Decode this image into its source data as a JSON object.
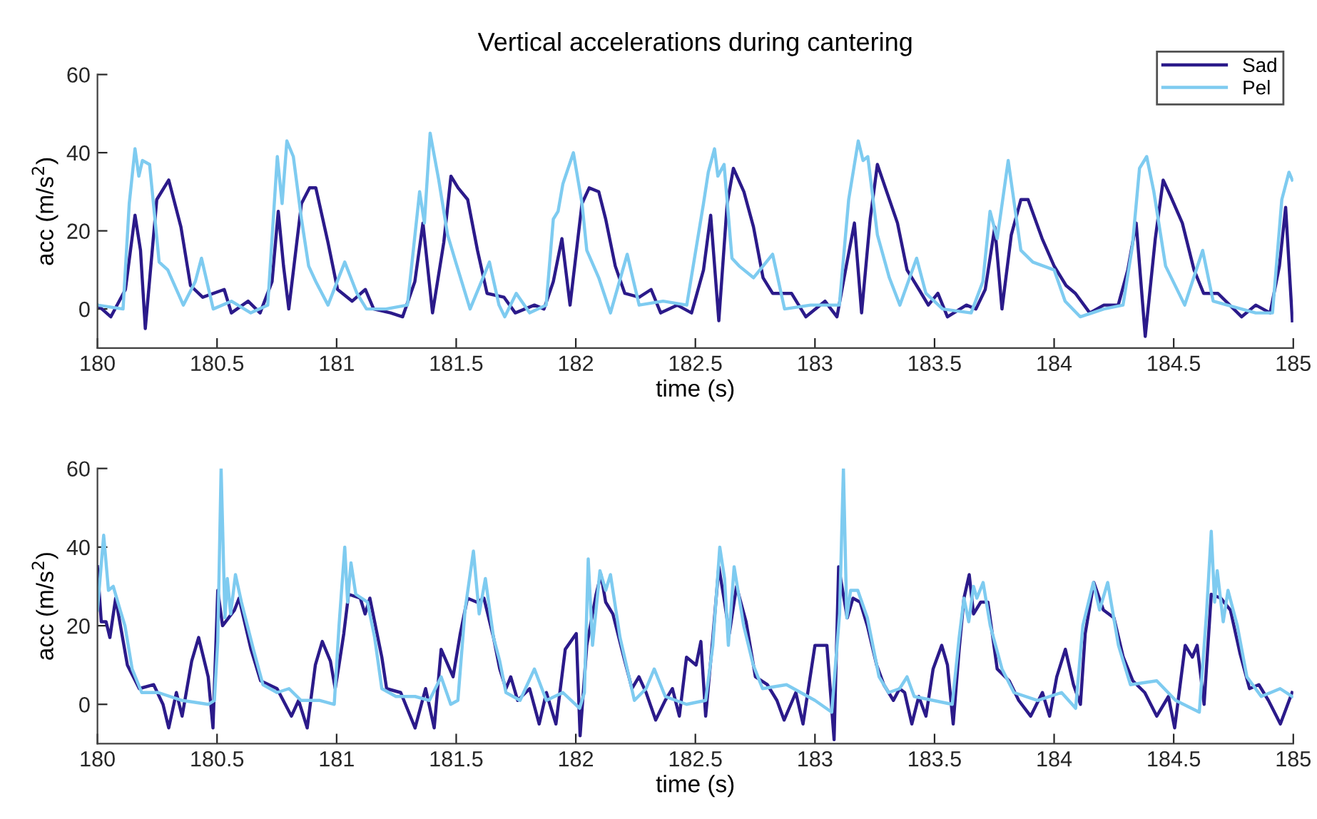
{
  "chart_data": [
    {
      "type": "line",
      "title": "Vertical accelerations during cantering",
      "xlabel": "time (s)",
      "ylabel": "acc (m/s$^{2}$)",
      "xlim": [
        180,
        185
      ],
      "ylim": [
        -10,
        60
      ],
      "xticks": [
        180,
        180.5,
        181,
        181.5,
        182,
        182.5,
        183,
        183.5,
        184,
        184.5,
        185
      ],
      "yticks": [
        0,
        20,
        40,
        60
      ],
      "grid": false,
      "legend": "top right",
      "line_style": "solid",
      "marker": "none",
      "series": [
        {
          "name": "Sad",
          "color": "#2b1a8a",
          "x": [
            180.0,
            180.056,
            180.117,
            180.157,
            180.18,
            180.2,
            180.248,
            180.298,
            180.349,
            180.389,
            180.44,
            180.53,
            180.56,
            180.63,
            180.68,
            180.73,
            180.756,
            180.778,
            180.8,
            180.853,
            180.887,
            180.913,
            180.964,
            181.004,
            181.065,
            181.12,
            181.155,
            181.226,
            181.276,
            181.327,
            181.361,
            181.401,
            181.448,
            181.478,
            181.508,
            181.548,
            181.589,
            181.629,
            181.7,
            181.747,
            181.827,
            181.867,
            181.906,
            181.942,
            181.976,
            182.026,
            182.056,
            182.096,
            182.125,
            182.165,
            182.205,
            182.265,
            182.315,
            182.355,
            182.424,
            182.484,
            182.534,
            182.564,
            182.598,
            182.633,
            182.659,
            182.703,
            182.743,
            182.783,
            182.823,
            182.902,
            182.962,
            183.042,
            183.092,
            183.131,
            183.165,
            183.195,
            183.231,
            183.261,
            183.3,
            183.345,
            183.385,
            183.435,
            183.474,
            183.514,
            183.554,
            183.633,
            183.673,
            183.712,
            183.752,
            183.782,
            183.821,
            183.861,
            183.891,
            183.95,
            184.0,
            184.05,
            184.089,
            184.149,
            184.208,
            184.268,
            184.308,
            184.343,
            184.381,
            184.423,
            184.456,
            184.486,
            184.536,
            184.585,
            184.625,
            184.685,
            184.784,
            184.843,
            184.903,
            184.942,
            184.968,
            184.996
          ],
          "values": [
            1,
            -2,
            5,
            24,
            15,
            -5,
            28,
            33,
            21,
            6,
            3,
            5,
            -1,
            2,
            -1,
            7,
            25,
            11,
            0,
            27,
            31,
            31,
            17,
            5,
            2,
            5,
            0,
            -1,
            -2,
            7,
            22,
            -1,
            17,
            34,
            31,
            28,
            15,
            4,
            3,
            -1,
            1,
            0,
            7,
            18,
            1,
            27,
            31,
            30,
            23,
            11,
            4,
            3,
            5,
            -1,
            1,
            -1,
            10,
            24,
            -3,
            27,
            36,
            30,
            21,
            8,
            4,
            4,
            -2,
            2,
            -2,
            11,
            22,
            -1,
            23,
            37,
            30,
            22,
            10,
            5,
            1,
            4,
            -2,
            1,
            0,
            5,
            21,
            0,
            19,
            28,
            28,
            18,
            11,
            6,
            4,
            -1,
            1,
            1,
            10,
            22,
            -7,
            18,
            33,
            29,
            22,
            10,
            4,
            4,
            -2,
            1,
            -1,
            11,
            26,
            -3
          ]
        },
        {
          "name": "Pel",
          "color": "#7ecbf0",
          "x": [
            180.0,
            180.107,
            180.133,
            180.157,
            180.173,
            180.188,
            180.218,
            180.258,
            180.294,
            180.359,
            180.409,
            180.435,
            180.484,
            180.56,
            180.641,
            180.712,
            180.752,
            180.772,
            180.792,
            180.819,
            180.853,
            180.883,
            180.913,
            180.964,
            181.034,
            181.085,
            181.125,
            181.206,
            181.296,
            181.347,
            181.367,
            181.391,
            181.427,
            181.464,
            181.498,
            181.558,
            181.639,
            181.679,
            181.703,
            181.751,
            181.807,
            181.876,
            181.906,
            181.926,
            181.946,
            181.99,
            182.026,
            182.046,
            182.096,
            182.145,
            182.215,
            182.265,
            182.365,
            182.464,
            182.534,
            182.554,
            182.58,
            182.594,
            182.62,
            182.653,
            182.683,
            182.743,
            182.823,
            182.873,
            182.982,
            183.102,
            183.141,
            183.181,
            183.201,
            183.221,
            183.261,
            183.311,
            183.355,
            183.425,
            183.464,
            183.534,
            183.653,
            183.702,
            183.732,
            183.762,
            183.808,
            183.861,
            183.911,
            184.0,
            184.046,
            184.109,
            184.208,
            184.288,
            184.327,
            184.357,
            184.387,
            184.417,
            184.466,
            184.546,
            184.621,
            184.665,
            184.724,
            184.843,
            184.913,
            184.952,
            184.982,
            184.996
          ],
          "values": [
            1,
            0,
            27,
            41,
            34,
            38,
            37,
            12,
            10,
            1,
            7,
            13,
            0,
            2,
            -1,
            1,
            39,
            27,
            43,
            39,
            23,
            11,
            7,
            1,
            12,
            4,
            0,
            0,
            1,
            30,
            22,
            45,
            33,
            19,
            12,
            0,
            12,
            1,
            -2,
            4,
            -1,
            1,
            23,
            25,
            32,
            40,
            27,
            15,
            8,
            -1,
            14,
            1,
            2,
            1,
            27,
            35,
            41,
            34,
            37,
            13,
            11,
            8,
            14,
            0,
            1,
            1,
            28,
            43,
            38,
            39,
            19,
            8,
            1,
            13,
            4,
            0,
            -1,
            7,
            25,
            18,
            38,
            15,
            12,
            10,
            2,
            -2,
            0,
            1,
            16,
            36,
            39,
            30,
            11,
            1,
            15,
            2,
            1,
            -1,
            -1,
            28,
            35,
            33
          ]
        }
      ]
    },
    {
      "type": "line",
      "xlabel": "time (s)",
      "ylabel": "acc (m/s$^{2}$)",
      "xlim": [
        180,
        185
      ],
      "ylim": [
        -10,
        60
      ],
      "xticks": [
        180,
        180.5,
        181,
        181.5,
        182,
        182.5,
        183,
        183.5,
        184,
        184.5,
        185
      ],
      "yticks": [
        0,
        20,
        40,
        60
      ],
      "grid": false,
      "legend": false,
      "line_style": "solid",
      "marker": "none",
      "series": [
        {
          "color": "#2b1a8a",
          "x": [
            180.0,
            180.016,
            180.036,
            180.052,
            180.076,
            180.125,
            180.175,
            180.235,
            180.274,
            180.298,
            180.33,
            180.354,
            180.394,
            180.423,
            180.463,
            180.483,
            180.503,
            180.523,
            180.573,
            180.592,
            180.642,
            180.682,
            180.751,
            180.811,
            180.841,
            180.877,
            180.911,
            180.94,
            180.974,
            180.994,
            181.01,
            181.03,
            181.05,
            181.099,
            181.119,
            181.139,
            181.189,
            181.209,
            181.268,
            181.328,
            181.372,
            181.408,
            181.437,
            181.487,
            181.517,
            181.547,
            181.586,
            181.616,
            181.656,
            181.682,
            181.708,
            181.728,
            181.757,
            181.807,
            181.847,
            181.877,
            181.917,
            181.956,
            182.002,
            182.018,
            182.046,
            182.085,
            182.105,
            182.125,
            182.155,
            182.205,
            182.235,
            182.264,
            182.294,
            182.334,
            182.374,
            182.404,
            182.433,
            182.463,
            182.503,
            182.523,
            182.543,
            182.573,
            182.598,
            182.622,
            182.642,
            182.672,
            182.712,
            182.751,
            182.801,
            182.841,
            182.871,
            182.92,
            182.95,
            183.0,
            183.05,
            183.08,
            183.099,
            183.135,
            183.159,
            183.189,
            183.219,
            183.258,
            183.288,
            183.328,
            183.354,
            183.375,
            183.405,
            183.434,
            183.464,
            183.494,
            183.53,
            183.554,
            183.578,
            183.603,
            183.623,
            183.645,
            183.663,
            183.693,
            183.723,
            183.762,
            183.812,
            183.852,
            183.902,
            183.951,
            183.981,
            184.011,
            184.047,
            184.081,
            184.11,
            184.13,
            184.166,
            184.206,
            184.25,
            184.289,
            184.329,
            184.379,
            184.429,
            184.478,
            184.504,
            184.548,
            184.578,
            184.598,
            184.627,
            184.657,
            184.697,
            184.737,
            184.777,
            184.817,
            184.856,
            184.896,
            184.946,
            184.995
          ],
          "values": [
            35,
            21,
            21,
            17,
            27,
            10,
            4,
            5,
            0,
            -6,
            3,
            -3,
            11,
            17,
            7,
            -6,
            29,
            20,
            24,
            27,
            14,
            6,
            4,
            -3,
            1,
            -6,
            10,
            16,
            11,
            4,
            10,
            18,
            28,
            27,
            23,
            27,
            12,
            4,
            3,
            -6,
            4,
            -6,
            14,
            7,
            18,
            27,
            26,
            27,
            17,
            9,
            4,
            7,
            1,
            4,
            -5,
            3,
            -5,
            14,
            18,
            -8,
            15,
            28,
            33,
            26,
            23,
            11,
            4,
            7,
            3,
            -4,
            1,
            4,
            -3,
            12,
            10,
            16,
            -3,
            17,
            35,
            26,
            18,
            30,
            21,
            7,
            5,
            1,
            -4,
            3,
            -5,
            15,
            15,
            -9,
            35,
            22,
            27,
            26,
            20,
            10,
            5,
            1,
            4,
            3,
            -5,
            2,
            -3,
            9,
            15,
            10,
            -5,
            14,
            27,
            33,
            23,
            26,
            26,
            9,
            6,
            1,
            -3,
            3,
            -3,
            7,
            14,
            5,
            0,
            18,
            31,
            24,
            22,
            12,
            6,
            3,
            -3,
            2,
            -6,
            15,
            12,
            15,
            0,
            28,
            27,
            24,
            13,
            4,
            5,
            1,
            -5,
            3
          ]
        },
        {
          "color": "#7ecbf0",
          "x": [
            180.0,
            180.026,
            180.046,
            180.066,
            180.095,
            180.115,
            180.145,
            180.185,
            180.254,
            180.354,
            180.463,
            180.489,
            180.503,
            180.517,
            180.533,
            180.543,
            180.557,
            180.577,
            180.602,
            180.652,
            180.692,
            180.751,
            180.801,
            180.851,
            180.93,
            180.99,
            181.01,
            181.034,
            181.046,
            181.06,
            181.08,
            181.129,
            181.159,
            181.189,
            181.248,
            181.328,
            181.388,
            181.437,
            181.477,
            181.507,
            181.537,
            181.572,
            181.596,
            181.622,
            181.656,
            181.682,
            181.708,
            181.767,
            181.827,
            181.877,
            181.946,
            182.016,
            182.036,
            182.052,
            182.07,
            182.101,
            182.125,
            182.145,
            182.185,
            182.245,
            182.294,
            182.328,
            182.374,
            182.463,
            182.543,
            182.573,
            182.602,
            182.622,
            182.638,
            182.662,
            182.702,
            182.742,
            182.781,
            182.881,
            183.0,
            183.07,
            183.103,
            183.119,
            183.133,
            183.149,
            183.179,
            183.219,
            183.268,
            183.308,
            183.354,
            183.385,
            183.415,
            183.494,
            183.574,
            183.603,
            183.623,
            183.643,
            183.663,
            183.677,
            183.703,
            183.733,
            183.782,
            183.832,
            183.931,
            184.031,
            184.09,
            184.12,
            184.164,
            184.19,
            184.224,
            184.269,
            184.319,
            184.429,
            184.508,
            184.607,
            184.637,
            184.657,
            184.671,
            184.682,
            184.707,
            184.727,
            184.766,
            184.806,
            184.866,
            184.945,
            184.995
          ],
          "values": [
            24,
            43,
            29,
            30,
            24,
            20,
            9,
            3,
            3,
            1,
            0,
            1,
            16,
            60,
            22,
            32,
            23,
            33,
            26,
            14,
            5,
            3,
            4,
            1,
            1,
            0,
            20,
            40,
            26,
            36,
            28,
            26,
            17,
            4,
            2,
            2,
            1,
            7,
            0,
            1,
            24,
            39,
            23,
            32,
            17,
            11,
            3,
            1,
            9,
            1,
            3,
            -1,
            3,
            37,
            15,
            34,
            29,
            33,
            17,
            1,
            4,
            9,
            2,
            0,
            1,
            15,
            40,
            32,
            15,
            35,
            20,
            10,
            4,
            5,
            1,
            -2,
            23,
            60,
            22,
            29,
            29,
            22,
            7,
            3,
            4,
            7,
            2,
            1,
            0,
            17,
            27,
            21,
            30,
            27,
            31,
            20,
            9,
            3,
            1,
            3,
            -1,
            20,
            31,
            24,
            31,
            15,
            5,
            6,
            1,
            -2,
            23,
            44,
            26,
            34,
            21,
            29,
            20,
            7,
            2,
            4,
            2
          ]
        }
      ]
    }
  ]
}
